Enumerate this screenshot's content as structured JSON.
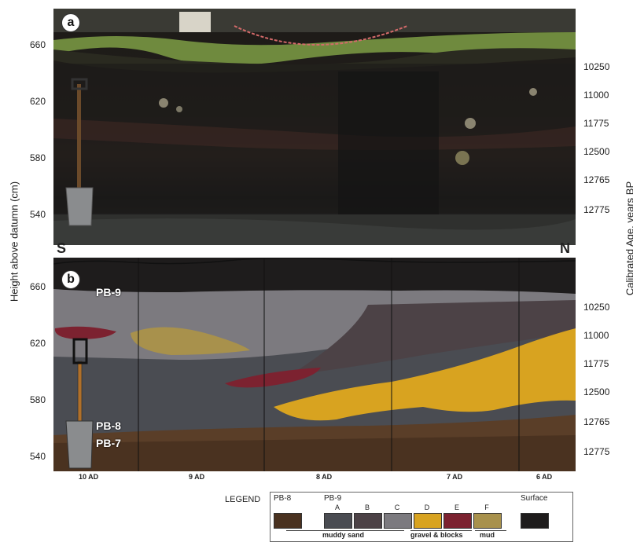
{
  "panel_a": {
    "badge": "a",
    "y_ticks": [
      "660",
      "620",
      "580",
      "540"
    ],
    "age_ticks": [
      "10250",
      "11000",
      "11775",
      "12500",
      "12765",
      "12775"
    ]
  },
  "panel_b": {
    "badge": "b",
    "south_mark": "S",
    "north_mark": "N",
    "y_ticks": [
      "660",
      "620",
      "580",
      "540"
    ],
    "age_ticks": [
      "10250",
      "11000",
      "11775",
      "12500",
      "12765",
      "12775"
    ],
    "units": {
      "pb9": "PB-9",
      "pb8": "PB-8",
      "pb7": "PB-7"
    },
    "segments": [
      "10 AD",
      "9 AD",
      "8 AD",
      "7 AD",
      "6 AD"
    ]
  },
  "axes": {
    "left_label": "Height above datumn (cm)",
    "right_label": "Calibrated Age. years BP"
  },
  "legend": {
    "title": "LEGEND",
    "pb8_header": "PB-8",
    "pb9_header": "PB-9",
    "surface_header": "Surface",
    "letters": [
      "A",
      "B",
      "C",
      "D",
      "E",
      "F"
    ],
    "group_muddy_sand": "muddy sand",
    "group_gravel": "gravel & blocks",
    "group_mud": "mud",
    "colors": {
      "pb8": "#4a3220",
      "A": "#4a4c52",
      "B": "#4c4246",
      "C": "#7c7a7f",
      "D": "#d8a320",
      "E": "#7c2230",
      "F": "#a8914c",
      "surface": "#1e1c1c"
    }
  }
}
